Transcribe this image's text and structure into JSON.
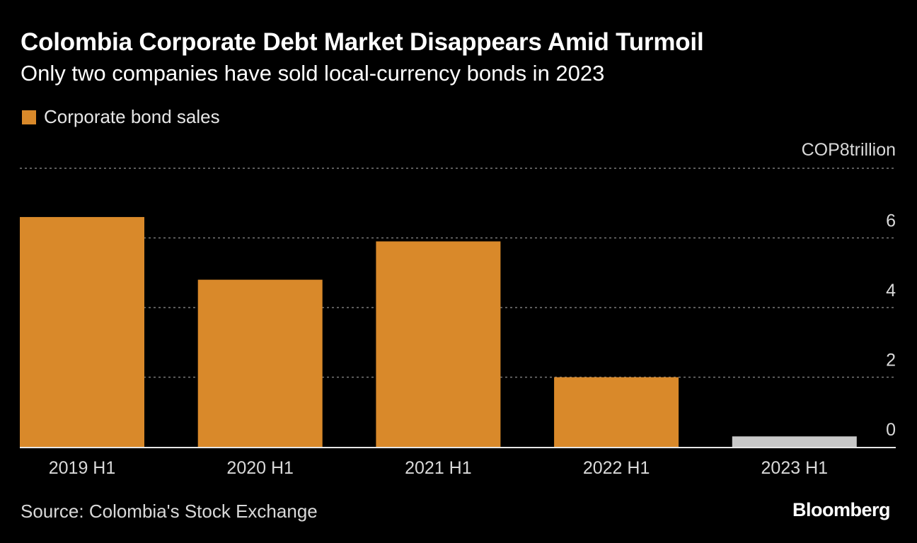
{
  "title": "Colombia Corporate Debt Market Disappears Amid Turmoil",
  "subtitle": "Only two companies have sold local-currency bonds in 2023",
  "source": "Source: Colombia's Stock Exchange",
  "brand": "Bloomberg",
  "chart_data": {
    "type": "bar",
    "title": "Colombia Corporate Debt Market Disappears Amid Turmoil",
    "subtitle": "Only two companies have sold local-currency bonds in 2023",
    "legend_position": "top-left",
    "grid": true,
    "unit_label": "COP8trillion",
    "categories": [
      "2019 H1",
      "2020 H1",
      "2021 H1",
      "2022 H1",
      "2023 H1"
    ],
    "series": [
      {
        "name": "Corporate bond sales",
        "values": [
          6.6,
          4.8,
          5.9,
          2.0,
          0.3
        ],
        "color": "#d9892a"
      }
    ],
    "highlight": {
      "category": "2023 H1",
      "color": "#c8c8c8"
    },
    "yticks": [
      0,
      2,
      4,
      6,
      8
    ],
    "ylim": [
      0,
      8
    ],
    "xlabel": "",
    "ylabel": ""
  }
}
